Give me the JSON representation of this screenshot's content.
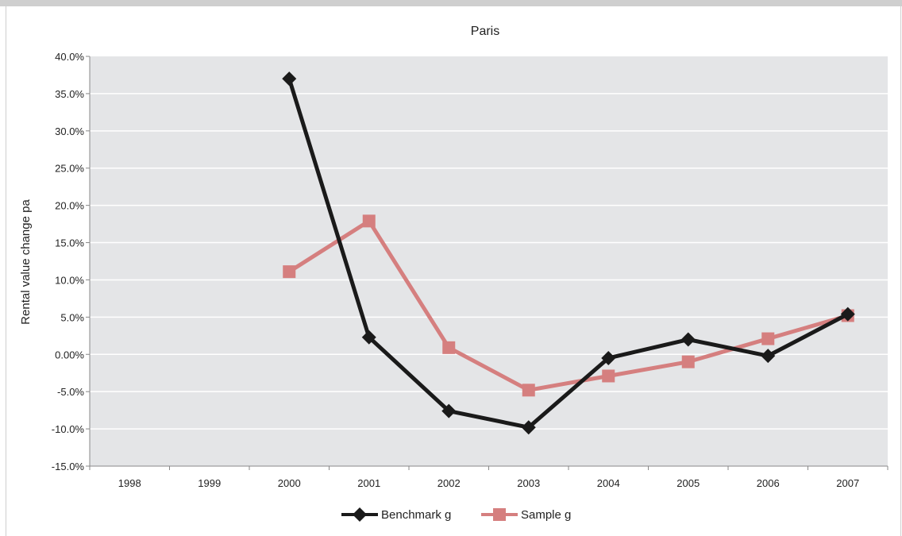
{
  "chart_data": {
    "type": "line",
    "title": "Paris",
    "xlabel": "",
    "ylabel": "Rental value change pa",
    "categories": [
      "1998",
      "1999",
      "2000",
      "2001",
      "2002",
      "2003",
      "2004",
      "2005",
      "2006",
      "2007"
    ],
    "ylim": [
      -0.15,
      0.4
    ],
    "yticks": [
      0.4,
      0.35,
      0.3,
      0.25,
      0.2,
      0.15,
      0.1,
      0.05,
      0.0,
      -0.05,
      -0.1,
      -0.15
    ],
    "ytick_labels": [
      "40.0%",
      "35.0%",
      "30.0%",
      "25.0%",
      "20.0%",
      "15.0%",
      "10.0%",
      "5.0%",
      "0.00%",
      "-5.0%",
      "-10.0%",
      "-15.0%"
    ],
    "grid": true,
    "legend_position": "bottom",
    "series": [
      {
        "name": "Benchmark g",
        "color": "#1a1a1a",
        "marker": "diamond",
        "values": [
          null,
          null,
          0.37,
          0.023,
          -0.076,
          -0.098,
          -0.005,
          0.02,
          -0.002,
          0.054
        ]
      },
      {
        "name": "Sample g",
        "color": "#d57f7f",
        "marker": "square",
        "values": [
          null,
          null,
          0.111,
          0.179,
          0.009,
          -0.048,
          -0.029,
          -0.01,
          0.021,
          0.052
        ]
      }
    ]
  }
}
